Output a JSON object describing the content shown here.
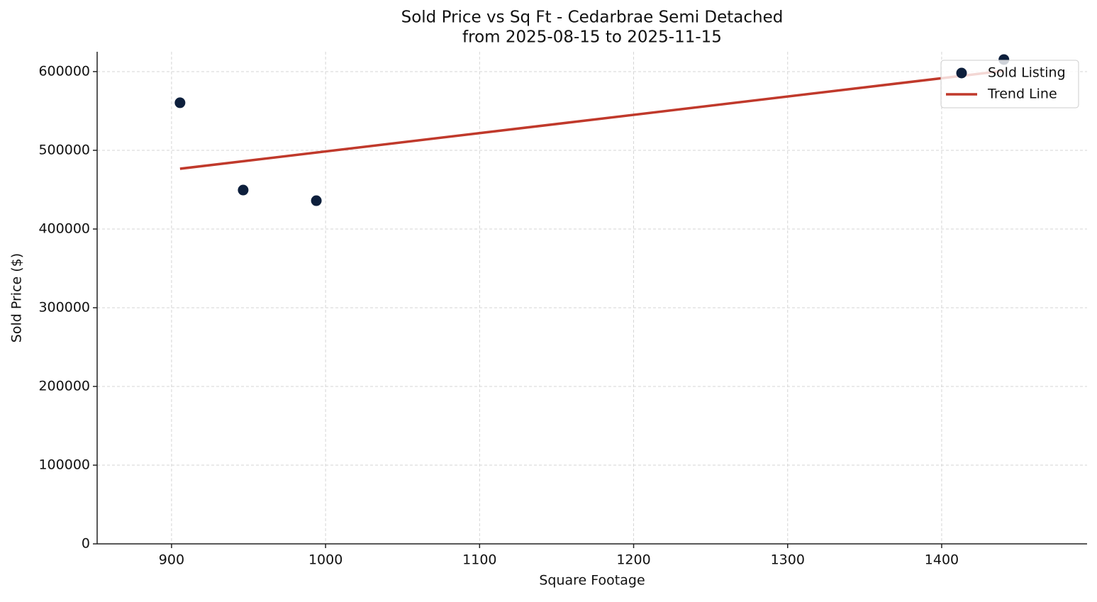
{
  "chart_data": {
    "type": "scatter",
    "title": "Sold Price vs Sq Ft - Cedarbrae Semi Detached",
    "subtitle": "from 2025-08-15 to 2025-11-15",
    "x_label": "Square Footage",
    "y_label": "Sold Price ($)",
    "xlim": [
      851.7,
      1494.4
    ],
    "ylim": [
      0,
      625200
    ],
    "xticks": [
      900,
      1000,
      1100,
      1200,
      1300,
      1400
    ],
    "yticks": [
      0,
      100000,
      200000,
      300000,
      400000,
      500000,
      600000
    ],
    "grid": true,
    "legend": "upper right",
    "series": [
      {
        "name": "Sold Listing",
        "type": "scatter",
        "color": "#0d1f3c",
        "x": [
          905.5,
          946.5,
          994,
          1440.4
        ],
        "values": [
          560400,
          449500,
          436000,
          615300
        ]
      },
      {
        "name": "Trend Line",
        "type": "line",
        "color": "#c0392b",
        "x": [
          905.5,
          1440.4
        ],
        "values": [
          476600,
          601000
        ]
      }
    ]
  }
}
